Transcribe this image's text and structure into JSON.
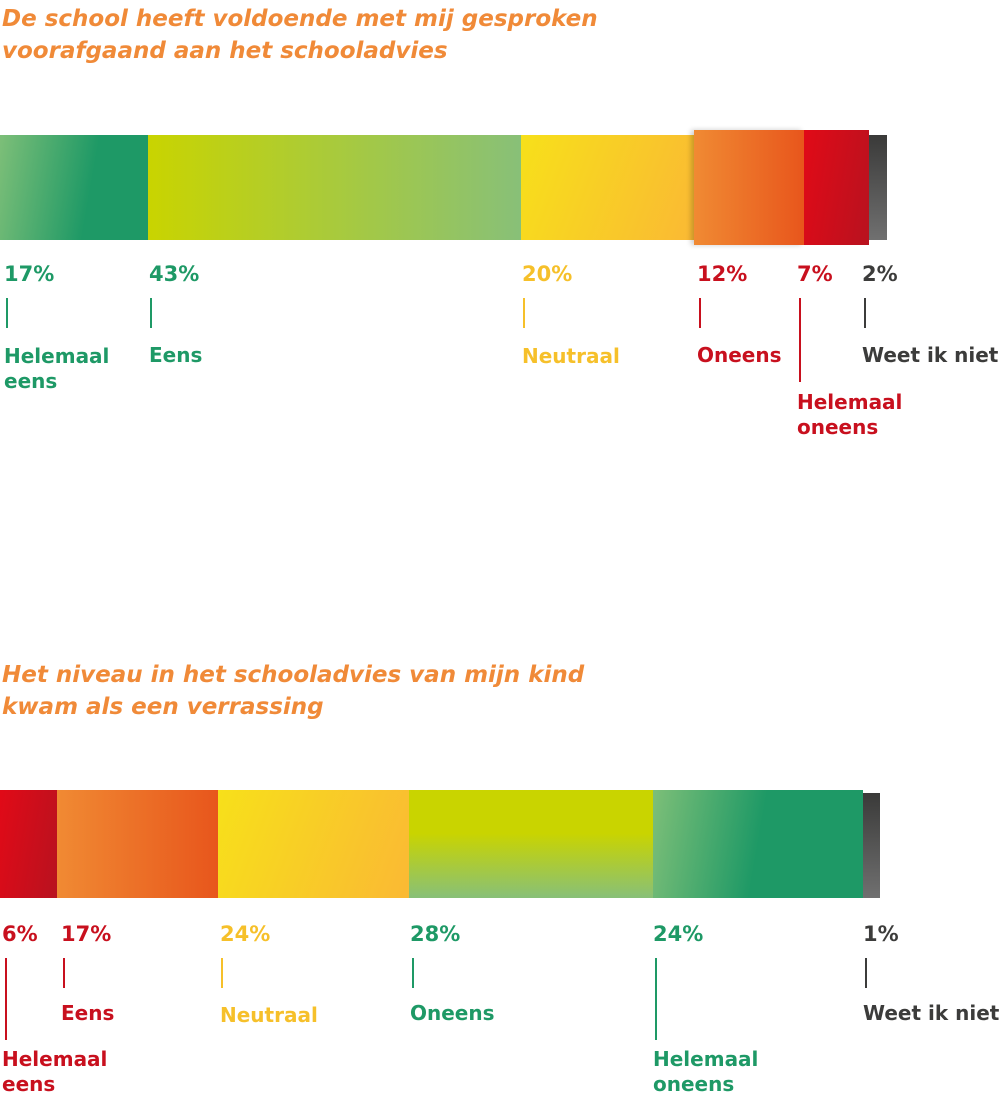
{
  "chart_data": [
    {
      "type": "bar",
      "stacked": true,
      "orientation": "horizontal",
      "title": "De school heeft voldoende met mij gesproken voorafgaand aan het schooladvies",
      "segments": [
        {
          "label": "Helemaal eens",
          "value": 17,
          "pct": "17%",
          "color": "#1e9966"
        },
        {
          "label": "Eens",
          "value": 43,
          "pct": "43%",
          "color": "#c5d300"
        },
        {
          "label": "Neutraal",
          "value": 20,
          "pct": "20%",
          "color": "#f6c02a"
        },
        {
          "label": "Oneens",
          "value": 12,
          "pct": "12%",
          "color": "#e85a1e"
        },
        {
          "label": "Helemaal oneens",
          "value": 7,
          "pct": "7%",
          "color": "#c8101e"
        },
        {
          "label": "Weet ik niet",
          "value": 2,
          "pct": "2%",
          "color": "#3c3c3b"
        }
      ]
    },
    {
      "type": "bar",
      "stacked": true,
      "orientation": "horizontal",
      "title": "Het niveau in het schooladvies van mijn kind kwam als een verrassing",
      "segments": [
        {
          "label": "Helemaal eens",
          "value": 6,
          "pct": "6%",
          "color": "#c8101e"
        },
        {
          "label": "Eens",
          "value": 17,
          "pct": "17%",
          "color": "#e85a1e"
        },
        {
          "label": "Neutraal",
          "value": 24,
          "pct": "24%",
          "color": "#f6c02a"
        },
        {
          "label": "Oneens",
          "value": 28,
          "pct": "28%",
          "color": "#1e9966"
        },
        {
          "label": "Helemaal oneens",
          "value": 24,
          "pct": "24%",
          "color": "#1e9966"
        },
        {
          "label": "Weet ik niet",
          "value": 1,
          "pct": "1%",
          "color": "#3c3c3b"
        }
      ]
    }
  ]
}
